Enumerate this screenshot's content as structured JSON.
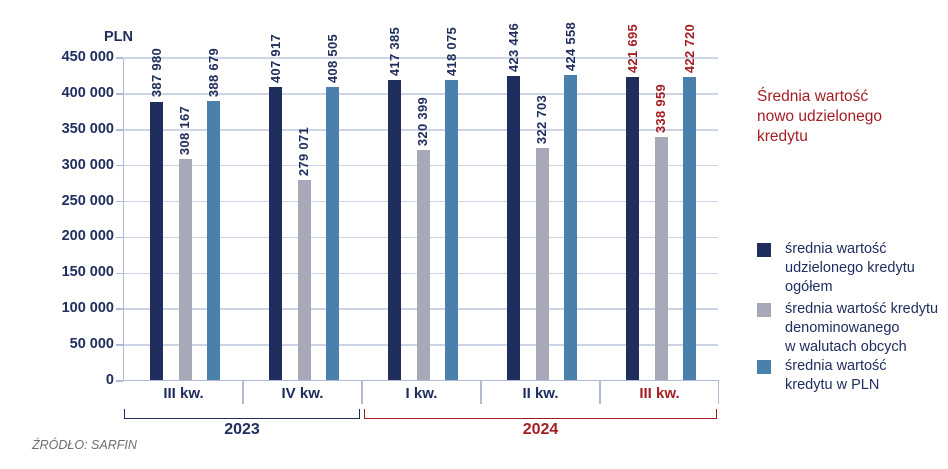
{
  "colors": {
    "navy": "#202e5e",
    "gray": "#a7a9b8",
    "blue": "#4a80ac",
    "red": "#a31e23",
    "grid": "#ccd4e6",
    "axis": "#b0bad4",
    "source_gray": "#6d6e71"
  },
  "chart_data": {
    "type": "bar",
    "title": "Średnia wartość nowo udzielonego kredytu",
    "unit_label": "PLN",
    "ylim": [
      0,
      450000
    ],
    "ytick_step": 50000,
    "ytick_labels": [
      "0",
      "50 000",
      "100 000",
      "150 000",
      "200 000",
      "250 000",
      "300 000",
      "350 000",
      "400 000",
      "450 000"
    ],
    "grid": true,
    "legend_position": "right",
    "categories": [
      "III kw.",
      "IV kw.",
      "I kw.",
      "II kw.",
      "III kw."
    ],
    "category_colors": [
      "navy",
      "navy",
      "navy",
      "navy",
      "red"
    ],
    "value_label_colors": [
      "navy",
      "navy",
      "navy",
      "navy",
      "red"
    ],
    "year_groups": [
      {
        "label": "2023",
        "span": [
          0,
          2
        ],
        "color_key": "navy"
      },
      {
        "label": "2024",
        "span": [
          2,
          5
        ],
        "color_key": "red"
      }
    ],
    "series": [
      {
        "name": "średnia wartość udzielonego kredytu ogółem",
        "color_key": "navy",
        "values": [
          387980,
          407917,
          417385,
          423446,
          421695
        ],
        "value_labels": [
          "387 980",
          "407 917",
          "417 385",
          "423 446",
          "421 695"
        ]
      },
      {
        "name": "średnia wartość kredytu denominowanego w walutach obcych",
        "color_key": "gray",
        "values": [
          308167,
          279071,
          320399,
          322703,
          338959
        ],
        "value_labels": [
          "308 167",
          "279 071",
          "320 399",
          "322 703",
          "338 959"
        ]
      },
      {
        "name": "średnia wartość kredytu w PLN",
        "color_key": "blue",
        "values": [
          388679,
          408505,
          418075,
          424558,
          422720
        ],
        "value_labels": [
          "388 679",
          "408 505",
          "418 075",
          "424 558",
          "422 720"
        ]
      }
    ]
  },
  "legend": {
    "title": "Średnia wartość\nnowo udzielonego\nkredytu",
    "items": [
      {
        "label": "średnia wartość\nudzielonego kredytu\nogółem",
        "color_key": "navy"
      },
      {
        "label": "średnia wartość kredytu\ndenominowanego\nw walutach obcych",
        "color_key": "gray"
      },
      {
        "label": "średnia wartość\nkredytu w PLN",
        "color_key": "blue"
      }
    ]
  },
  "source": {
    "text": "ŹRÓDŁO: SARFIN"
  }
}
